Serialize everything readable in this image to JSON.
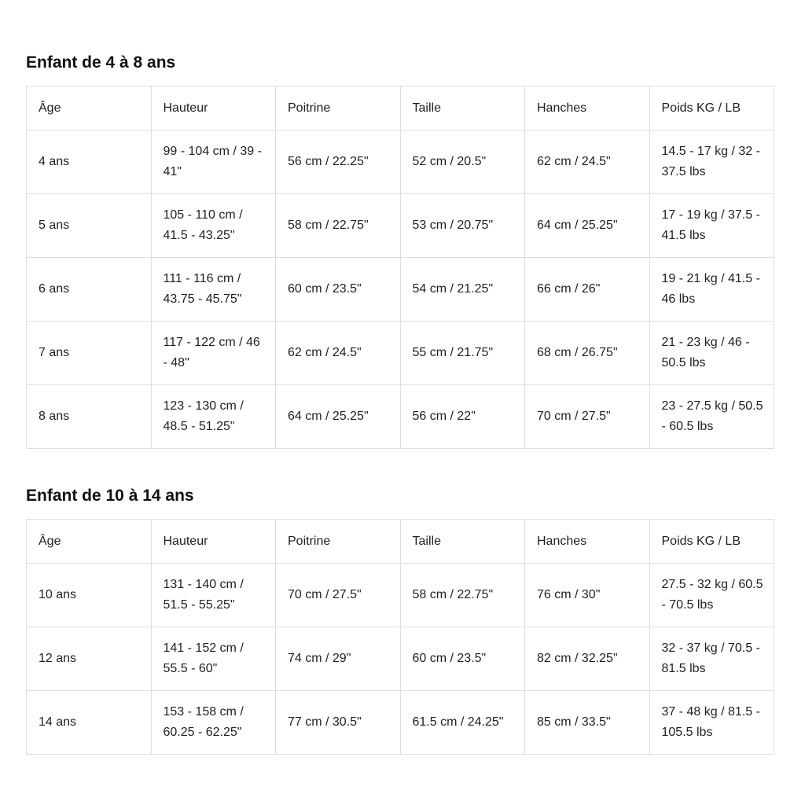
{
  "tables": [
    {
      "title": "Enfant de 4 à 8 ans",
      "headers": [
        "Âge",
        "Hauteur",
        "Poitrine",
        "Taille",
        "Hanches",
        "Poids KG / LB"
      ],
      "rows": [
        [
          "4 ans",
          "99 - 104 cm / 39 - 41\"",
          "56 cm / 22.25\"",
          "52 cm / 20.5\"",
          "62 cm / 24.5\"",
          "14.5 - 17 kg / 32 - 37.5 lbs"
        ],
        [
          "5 ans",
          "105 - 110 cm / 41.5 - 43.25\"",
          "58 cm / 22.75\"",
          "53 cm / 20.75\"",
          "64 cm / 25.25\"",
          "17 - 19 kg / 37.5 - 41.5 lbs"
        ],
        [
          "6 ans",
          "111 - 116 cm / 43.75 - 45.75\"",
          "60 cm / 23.5\"",
          "54 cm / 21.25\"",
          "66 cm / 26\"",
          "19 - 21 kg / 41.5 - 46 lbs"
        ],
        [
          "7 ans",
          "117 - 122 cm / 46 - 48\"",
          "62 cm / 24.5\"",
          "55 cm / 21.75\"",
          "68 cm / 26.75\"",
          "21 - 23 kg / 46 - 50.5 lbs"
        ],
        [
          "8 ans",
          "123 - 130 cm / 48.5 - 51.25\"",
          "64 cm / 25.25\"",
          "56 cm / 22\"",
          "70 cm / 27.5\"",
          "23 - 27.5 kg / 50.5 - 60.5 lbs"
        ]
      ]
    },
    {
      "title": "Enfant de 10 à 14 ans",
      "headers": [
        "Âge",
        "Hauteur",
        "Poitrine",
        "Taille",
        "Hanches",
        "Poids KG / LB"
      ],
      "rows": [
        [
          "10 ans",
          "131 - 140 cm / 51.5 - 55.25\"",
          "70 cm / 27.5\"",
          "58 cm / 22.75\"",
          "76 cm / 30\"",
          "27.5 - 32 kg / 60.5 - 70.5 lbs"
        ],
        [
          "12 ans",
          "141 - 152 cm / 55.5 - 60\"",
          "74 cm / 29\"",
          "60 cm / 23.5\"",
          "82 cm / 32.25\"",
          "32 - 37 kg / 70.5 - 81.5 lbs"
        ],
        [
          "14 ans",
          "153 - 158 cm / 60.25 - 62.25\"",
          "77 cm / 30.5\"",
          "61.5 cm / 24.25\"",
          "85 cm / 33.5\"",
          "37 - 48 kg / 81.5 - 105.5 lbs"
        ]
      ]
    }
  ]
}
